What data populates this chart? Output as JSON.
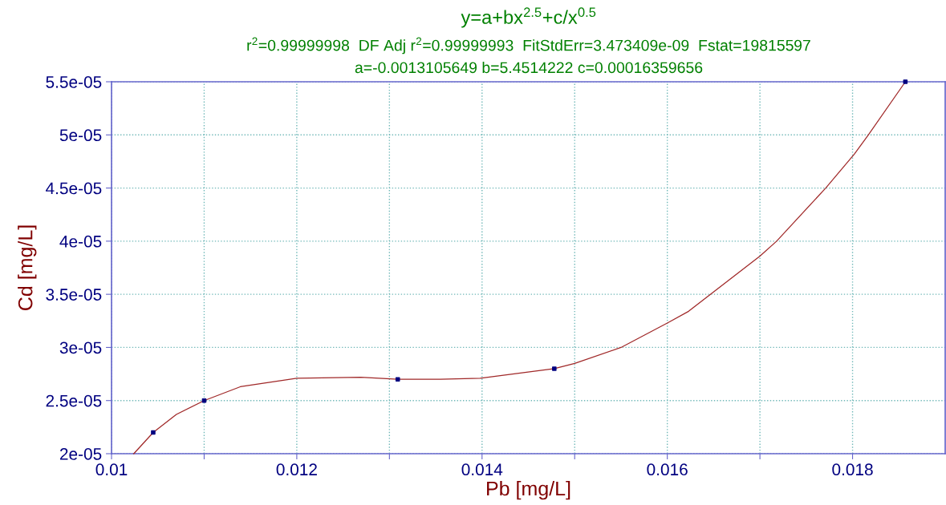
{
  "chart_data": {
    "type": "line",
    "title": "y=a+bx$^{2.5}$+c/x$^{0.5}$",
    "subtitle": "r$^{2}$=0.99999998  DF Adj r$^{2}$=0.99999993  FitStdErr=3.473409e-09  Fstat=19815597",
    "annotations": [
      "a=-0.0013105649 b=5.4514222 c=0.00016359656"
    ],
    "xlabel": "Pb [mg/L]",
    "ylabel": "Cd [mg/L]",
    "series": [
      {
        "color": "#a02828",
        "marker": "none",
        "x": [
          0.01024,
          0.01045,
          0.0107,
          0.011,
          0.01139,
          0.012,
          0.01269,
          0.01309,
          0.01355,
          0.01398,
          0.01478,
          0.015,
          0.0155,
          0.016,
          0.01623,
          0.017,
          0.01718,
          0.01771,
          0.01802,
          0.01817,
          0.01857
        ],
        "values": [
          2e-05,
          2.2e-05,
          2.37e-05,
          2.5e-05,
          2.63e-05,
          2.71e-05,
          2.72e-05,
          2.7e-05,
          2.7e-05,
          2.71e-05,
          2.8e-05,
          2.85e-05,
          3e-05,
          3.23e-05,
          3.34e-05,
          3.86e-05,
          4e-05,
          4.5e-05,
          4.82e-05,
          5e-05,
          5.5e-05
        ]
      },
      {
        "type": "scatter",
        "color": "#000080",
        "marker": "square",
        "x": [
          0.01045,
          0.011,
          0.01309,
          0.01478,
          0.01857
        ],
        "values": [
          2.2e-05,
          2.5e-05,
          2.7e-05,
          2.8e-05,
          5.5e-05
        ]
      }
    ],
    "xlim": [
      0.01,
      0.019
    ],
    "xticks": [
      0.01,
      {
        "value": 0.011,
        "label": null
      },
      {
        "value": 0.012,
        "label": "0.012"
      },
      {
        "value": 0.013,
        "label": null
      },
      {
        "value": 0.014,
        "label": "0.014"
      },
      {
        "value": 0.015,
        "label": null
      },
      {
        "value": 0.016,
        "label": "0.016"
      },
      {
        "value": 0.017,
        "label": null
      },
      {
        "value": 0.018,
        "label": "0.018"
      }
    ],
    "ylim": [
      2e-05,
      5.5e-05
    ],
    "yticks": [
      {
        "value": 2e-05,
        "label": "2e-05"
      },
      {
        "value": 2.5e-05,
        "label": "2.5e-05"
      },
      {
        "value": 3e-05,
        "label": "3e-05"
      },
      {
        "value": 3.5e-05,
        "label": "3.5e-05"
      },
      {
        "value": 4e-05,
        "label": "4e-05"
      },
      {
        "value": 4.5e-05,
        "label": "4.5e-05"
      },
      {
        "value": 5e-05,
        "label": "5e-05"
      },
      {
        "value": 5.5e-05,
        "label": "5.5e-05"
      }
    ],
    "grid": true,
    "legend": false
  }
}
